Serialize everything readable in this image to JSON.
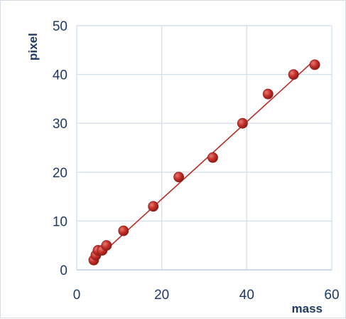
{
  "chart_data": {
    "type": "scatter",
    "title": "",
    "xlabel": "mass",
    "ylabel": "pixel",
    "xlim": [
      0,
      60
    ],
    "ylim": [
      0,
      50
    ],
    "xticks": [
      0,
      20,
      40,
      60
    ],
    "yticks": [
      0,
      10,
      20,
      30,
      40,
      50
    ],
    "grid": true,
    "legend": "none",
    "points": [
      {
        "x": 4,
        "y": 2
      },
      {
        "x": 4.5,
        "y": 3
      },
      {
        "x": 5,
        "y": 4
      },
      {
        "x": 6,
        "y": 4
      },
      {
        "x": 7,
        "y": 5
      },
      {
        "x": 11,
        "y": 8
      },
      {
        "x": 18,
        "y": 13
      },
      {
        "x": 24,
        "y": 19
      },
      {
        "x": 32,
        "y": 23
      },
      {
        "x": 39,
        "y": 30
      },
      {
        "x": 45,
        "y": 36
      },
      {
        "x": 51,
        "y": 40
      },
      {
        "x": 56,
        "y": 42
      }
    ],
    "trendline": {
      "x_start": 4,
      "y_start": 1.8,
      "x_end": 56,
      "y_end": 43
    },
    "colors": {
      "marker": "#c62f2a",
      "marker_edge": "#8e1d19",
      "trendline": "#b7322c",
      "grid": "#d6e1ee",
      "text": "#1f3a63"
    }
  }
}
